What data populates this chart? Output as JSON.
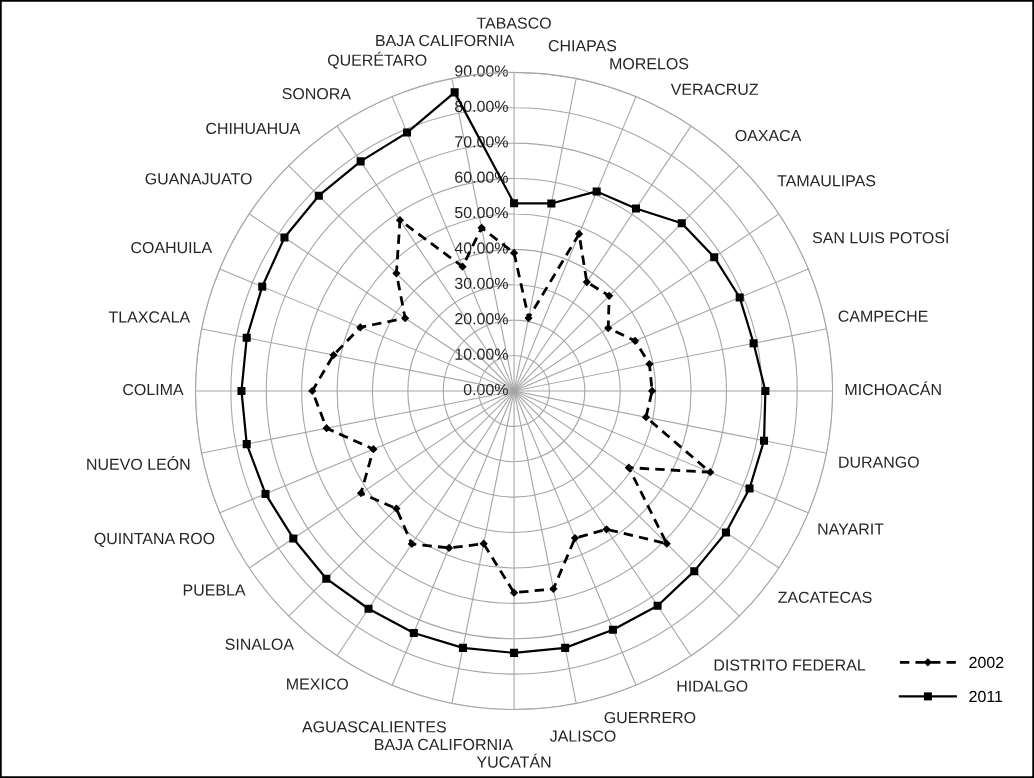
{
  "chart_data": {
    "type": "radar",
    "categories": [
      "TABASCO",
      "CHIAPAS",
      "MORELOS",
      "VERACRUZ",
      "OAXACA",
      "TAMAULIPAS",
      "SAN LUIS POTOSÍ",
      "CAMPECHE",
      "MICHOACÁN",
      "DURANGO",
      "NAYARIT",
      "ZACATECAS",
      "DISTRITO FEDERAL",
      "HIDALGO",
      "GUERRERO",
      "JALISCO",
      "YUCATÁN",
      "BAJA CALIFORNIA",
      "AGUASCALIENTES",
      "MEXICO",
      "SINALOA",
      "PUEBLA",
      "QUINTANA ROO",
      "NUEVO LEÓN",
      "COLIMA",
      "TLAXCALA",
      "COAHUILA",
      "GUANAJUATO",
      "CHIHUAHUA",
      "SONORA",
      "QUERÉTARO",
      "BAJA CALIFORNIA"
    ],
    "series": [
      {
        "name": "2002",
        "color": "#000000",
        "line_style": "dashed",
        "marker": "diamond",
        "values": [
          39,
          21,
          48,
          37,
          38,
          32,
          37,
          39,
          39,
          38,
          60,
          39,
          61,
          47,
          45,
          57,
          57,
          44,
          48,
          52,
          47,
          52,
          43,
          54,
          57,
          52,
          47,
          37,
          47,
          58,
          38,
          47
        ]
      },
      {
        "name": "2011",
        "color": "#000000",
        "line_style": "solid",
        "marker": "square",
        "values": [
          53,
          54,
          61,
          62,
          67,
          68,
          69,
          69,
          71,
          72,
          72,
          72,
          72,
          73,
          73,
          74,
          74,
          74,
          74,
          74,
          75,
          75,
          76,
          77,
          77,
          77,
          77,
          78,
          78,
          78,
          79,
          86
        ]
      }
    ],
    "ylim": [
      0,
      90
    ],
    "yticks": [
      {
        "value": 0,
        "label": "0.00%"
      },
      {
        "value": 10,
        "label": "10.00%"
      },
      {
        "value": 20,
        "label": "20.00%"
      },
      {
        "value": 30,
        "label": "30.00%"
      },
      {
        "value": 40,
        "label": "40.00%"
      },
      {
        "value": 50,
        "label": "50.00%"
      },
      {
        "value": 60,
        "label": "60.00%"
      },
      {
        "value": 70,
        "label": "70.00%"
      },
      {
        "value": 80,
        "label": "80.00%"
      },
      {
        "value": 90,
        "label": "90.00%"
      }
    ],
    "grid": true,
    "legend": "bottom right"
  }
}
